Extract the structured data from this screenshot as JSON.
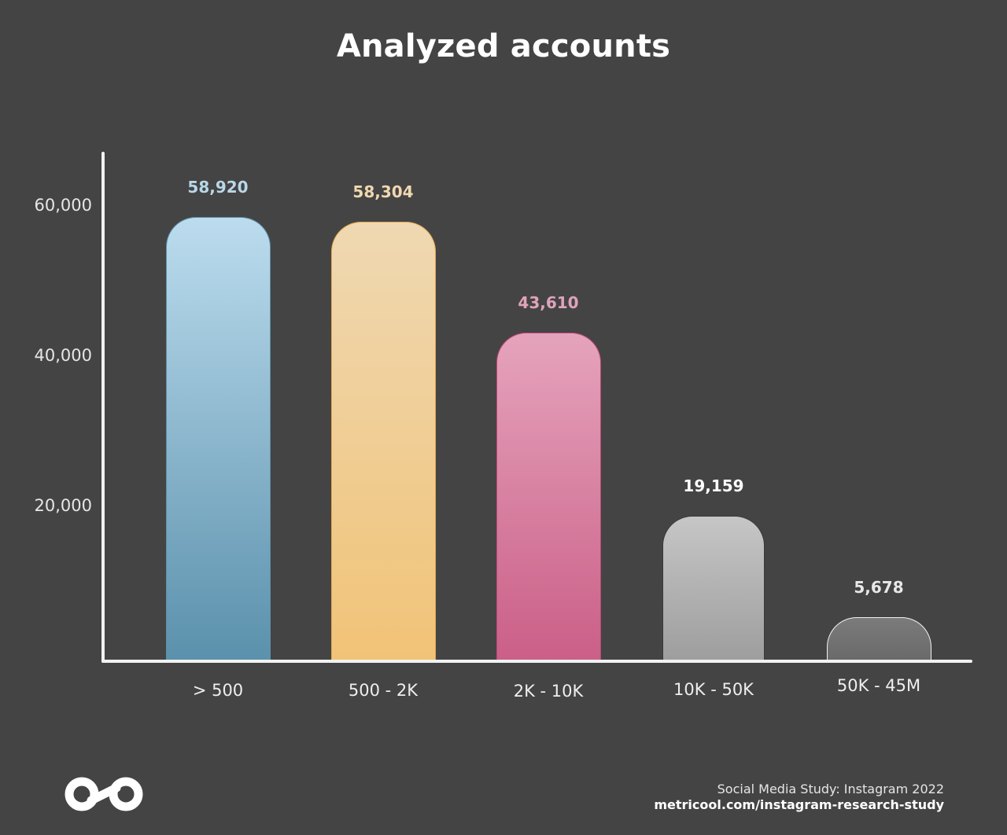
{
  "chart_data": {
    "type": "bar",
    "title": "Analyzed accounts",
    "xlabel": "",
    "ylabel": "",
    "categories": [
      "> 500",
      "500 - 2K",
      "2K - 10K",
      "10K - 50K",
      "50K - 45M"
    ],
    "values": [
      58920,
      58304,
      43610,
      19159,
      5678
    ],
    "value_labels": [
      "58,920",
      "58,304",
      "43,610",
      "19,159",
      "5,678"
    ],
    "yticks": [
      "20,000",
      "40,000",
      "60,000"
    ],
    "ylim": [
      0,
      67000
    ],
    "grid": false,
    "legend": null,
    "colors": [
      {
        "top": "#bcdcee",
        "bottom": "#5b91ac",
        "border": "#5f8fa9",
        "label": "#b9d7e8"
      },
      {
        "top": "#efd8b2",
        "bottom": "#f1c377",
        "border": "#e3a94f",
        "label": "#f0d8b0"
      },
      {
        "top": "#e5a3bc",
        "bottom": "#cb5f87",
        "border": "#b94a74",
        "label": "#e0a3bb"
      },
      {
        "top": "#c6c6c6",
        "bottom": "#9e9e9e",
        "border": "#3a3a3a",
        "label": "#ffffff"
      },
      {
        "top": "#7b7b7b",
        "bottom": "#6a6a6a",
        "border": "#f2f2f2",
        "label": "#e8e8e8"
      }
    ]
  },
  "footer": {
    "source": "Social Media Study: Instagram 2022",
    "url": "metricool.com/instagram-research-study"
  },
  "brand": {
    "logo": "metricool-infinity-logo-icon"
  }
}
